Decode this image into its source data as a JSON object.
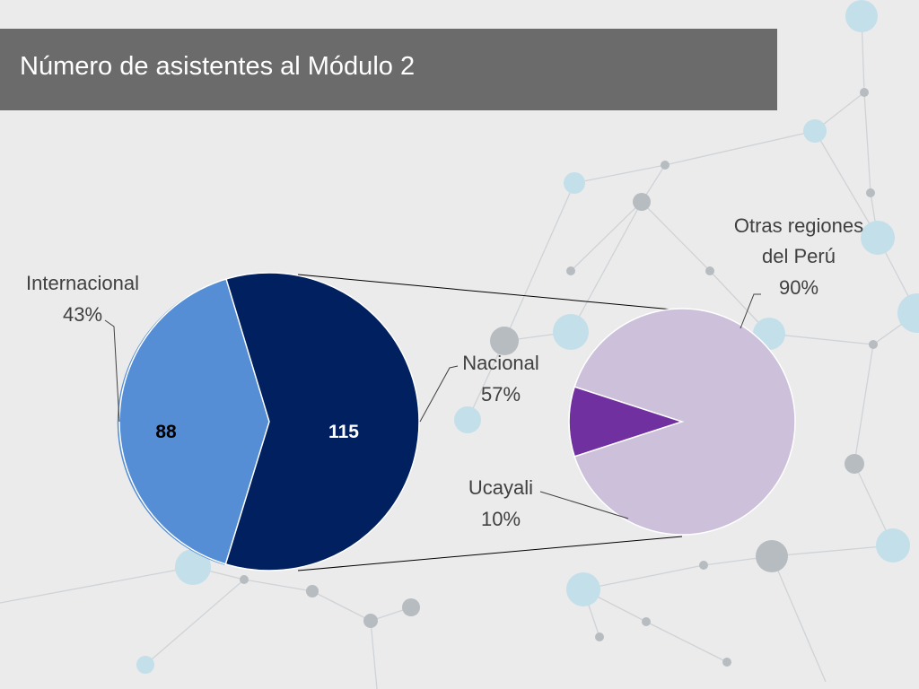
{
  "title": "Número de asistentes al Módulo 2",
  "chart_data": {
    "type": "pie",
    "main_pie": {
      "slices": [
        {
          "name": "Internacional",
          "value": 88,
          "percent_label": "43%",
          "color": "#558ed5"
        },
        {
          "name": "Nacional",
          "value": 115,
          "percent_label": "57%",
          "color": "#002060"
        }
      ]
    },
    "secondary_pie": {
      "slices": [
        {
          "name": "Otras regiones del Perú",
          "name_lines": [
            "Otras regiones",
            "del Perú"
          ],
          "percent_label": "90%",
          "color": "#ccc0da"
        },
        {
          "name": "Ucayali",
          "name_lines": [
            "Ucayali"
          ],
          "percent_label": "10%",
          "color": "#7030a0"
        }
      ]
    }
  }
}
